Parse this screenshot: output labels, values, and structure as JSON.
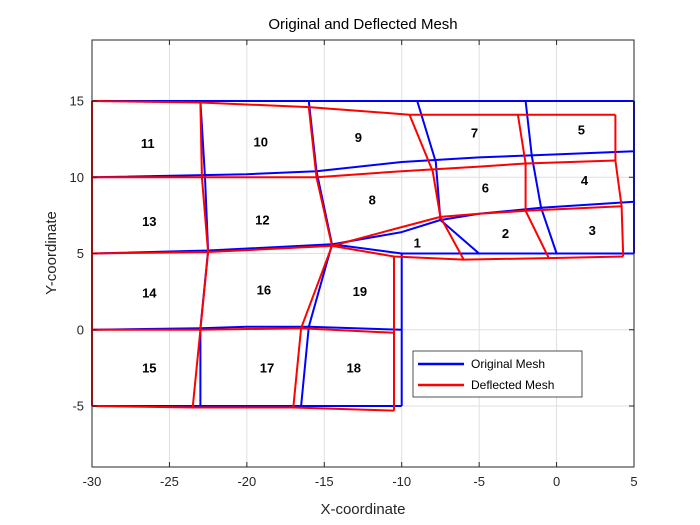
{
  "chart_data": {
    "type": "line",
    "title": "Original and Deflected Mesh",
    "xlabel": "X-coordinate",
    "ylabel": "Y-coordinate",
    "xlim": [
      -30,
      5
    ],
    "ylim": [
      -9,
      19
    ],
    "x_ticks": [
      -30,
      -25,
      -20,
      -15,
      -10,
      -5,
      0,
      5
    ],
    "x_tick_labels": [
      "-30",
      "-25",
      "-20",
      "-15",
      "-10",
      "-5",
      "0",
      "5"
    ],
    "y_ticks": [
      -5,
      0,
      5,
      10,
      15
    ],
    "y_tick_labels": [
      "-5",
      "0",
      "5",
      "10",
      "15"
    ],
    "grid": true,
    "legend_position": "lower-right-inside",
    "series": [
      {
        "name": "Original Mesh",
        "color": "#0000ff",
        "polylines": [
          [
            [
              -30,
              15
            ],
            [
              5,
              15
            ]
          ],
          [
            [
              -30,
              10
            ],
            [
              -20,
              10.2
            ],
            [
              -15.5,
              10.4
            ],
            [
              -10,
              11
            ],
            [
              -5,
              11.3
            ],
            [
              0,
              11.5
            ],
            [
              5,
              11.7
            ]
          ],
          [
            [
              -30,
              5
            ],
            [
              -22.5,
              5.2
            ],
            [
              -14.5,
              5.6
            ],
            [
              -10,
              5
            ],
            [
              5,
              5
            ]
          ],
          [
            [
              -30,
              0
            ],
            [
              -23,
              0.1
            ],
            [
              -20,
              0.2
            ],
            [
              -16,
              0.2
            ],
            [
              -10,
              0
            ]
          ],
          [
            [
              -30,
              -5
            ],
            [
              -23,
              -5
            ],
            [
              -16.5,
              -5
            ],
            [
              -10,
              -5
            ]
          ],
          [
            [
              -14.5,
              5.6
            ],
            [
              -10,
              6.4
            ],
            [
              -7.5,
              7.2
            ],
            [
              -5,
              7.6
            ],
            [
              -1,
              8
            ],
            [
              5,
              8.4
            ]
          ],
          [
            [
              -30,
              -5
            ],
            [
              -30,
              15
            ]
          ],
          [
            [
              5,
              5
            ],
            [
              5,
              15
            ]
          ],
          [
            [
              -10,
              -5
            ],
            [
              -10,
              5
            ]
          ],
          [
            [
              -23,
              15
            ],
            [
              -22.7,
              10
            ],
            [
              -22.5,
              5.2
            ],
            [
              -23,
              0.1
            ],
            [
              -23,
              -5
            ]
          ],
          [
            [
              -16,
              15
            ],
            [
              -15.5,
              10.4
            ],
            [
              -14.5,
              5.6
            ],
            [
              -16,
              0.2
            ],
            [
              -16.5,
              -5
            ]
          ],
          [
            [
              -9,
              15
            ],
            [
              -7.8,
              11
            ],
            [
              -7.5,
              7.2
            ],
            [
              -5,
              5
            ]
          ],
          [
            [
              -2,
              15
            ],
            [
              -1.6,
              11.4
            ],
            [
              -1,
              8
            ],
            [
              0,
              5
            ]
          ]
        ]
      },
      {
        "name": "Deflected Mesh",
        "color": "#ff0000",
        "polylines": [
          [
            [
              -30,
              15
            ],
            [
              -23,
              14.9
            ],
            [
              -16,
              14.6
            ],
            [
              -9.5,
              14.1
            ],
            [
              -2.5,
              14.1
            ],
            [
              3.8,
              14.1
            ]
          ],
          [
            [
              -30,
              10
            ],
            [
              -23,
              10
            ],
            [
              -15.5,
              10
            ],
            [
              -10,
              10.4
            ],
            [
              -5,
              10.7
            ],
            [
              -2,
              10.9
            ],
            [
              3.8,
              11.1
            ]
          ],
          [
            [
              -30,
              5
            ],
            [
              -22.5,
              5.1
            ],
            [
              -14.5,
              5.5
            ],
            [
              -10.5,
              4.8
            ],
            [
              -6,
              4.6
            ],
            [
              -0.5,
              4.7
            ],
            [
              4.3,
              4.8
            ]
          ],
          [
            [
              -30,
              0
            ],
            [
              -23,
              0
            ],
            [
              -16.5,
              0.1
            ],
            [
              -10.5,
              -0.2
            ]
          ],
          [
            [
              -30,
              -5
            ],
            [
              -23.5,
              -5.1
            ],
            [
              -17,
              -5.1
            ],
            [
              -10.5,
              -5.3
            ]
          ],
          [
            [
              -14.5,
              5.5
            ],
            [
              -10.5,
              6.6
            ],
            [
              -7.5,
              7.4
            ],
            [
              -5,
              7.6
            ],
            [
              -2,
              7.8
            ],
            [
              4.2,
              8.1
            ]
          ],
          [
            [
              -30,
              -5
            ],
            [
              -30,
              15
            ]
          ],
          [
            [
              -23,
              14.9
            ],
            [
              -22.9,
              10
            ],
            [
              -22.5,
              5.1
            ],
            [
              -23,
              0
            ],
            [
              -23.5,
              -5.1
            ]
          ],
          [
            [
              -16,
              14.6
            ],
            [
              -15.5,
              10
            ],
            [
              -14.5,
              5.5
            ],
            [
              -16.5,
              0.1
            ],
            [
              -17,
              -5.1
            ]
          ],
          [
            [
              -9.5,
              14.1
            ],
            [
              -8,
              10.4
            ],
            [
              -7.5,
              7.4
            ],
            [
              -6,
              4.6
            ]
          ],
          [
            [
              -2.5,
              14.1
            ],
            [
              -2,
              10.9
            ],
            [
              -2,
              7.8
            ],
            [
              -0.5,
              4.7
            ]
          ],
          [
            [
              3.8,
              14.1
            ],
            [
              3.8,
              11.1
            ],
            [
              4.2,
              8.1
            ],
            [
              4.3,
              4.8
            ]
          ],
          [
            [
              -10.5,
              4.8
            ],
            [
              -10.5,
              -0.2
            ],
            [
              -10.5,
              -5.3
            ]
          ]
        ]
      }
    ],
    "element_labels": [
      {
        "text": "1",
        "x": -9,
        "y": 5.7
      },
      {
        "text": "2",
        "x": -3.3,
        "y": 6.3
      },
      {
        "text": "3",
        "x": 2.3,
        "y": 6.5
      },
      {
        "text": "4",
        "x": 1.8,
        "y": 9.8
      },
      {
        "text": "5",
        "x": 1.6,
        "y": 13.1
      },
      {
        "text": "6",
        "x": -4.6,
        "y": 9.3
      },
      {
        "text": "7",
        "x": -5.3,
        "y": 12.9
      },
      {
        "text": "8",
        "x": -11.9,
        "y": 8.5
      },
      {
        "text": "9",
        "x": -12.8,
        "y": 12.6
      },
      {
        "text": "10",
        "x": -19.1,
        "y": 12.3
      },
      {
        "text": "11",
        "x": -26.4,
        "y": 12.2
      },
      {
        "text": "12",
        "x": -19,
        "y": 7.2
      },
      {
        "text": "13",
        "x": -26.3,
        "y": 7.1
      },
      {
        "text": "14",
        "x": -26.3,
        "y": 2.4
      },
      {
        "text": "15",
        "x": -26.3,
        "y": -2.5
      },
      {
        "text": "16",
        "x": -18.9,
        "y": 2.6
      },
      {
        "text": "17",
        "x": -18.7,
        "y": -2.5
      },
      {
        "text": "18",
        "x": -13.1,
        "y": -2.5
      },
      {
        "text": "19",
        "x": -12.7,
        "y": 2.5
      }
    ]
  }
}
